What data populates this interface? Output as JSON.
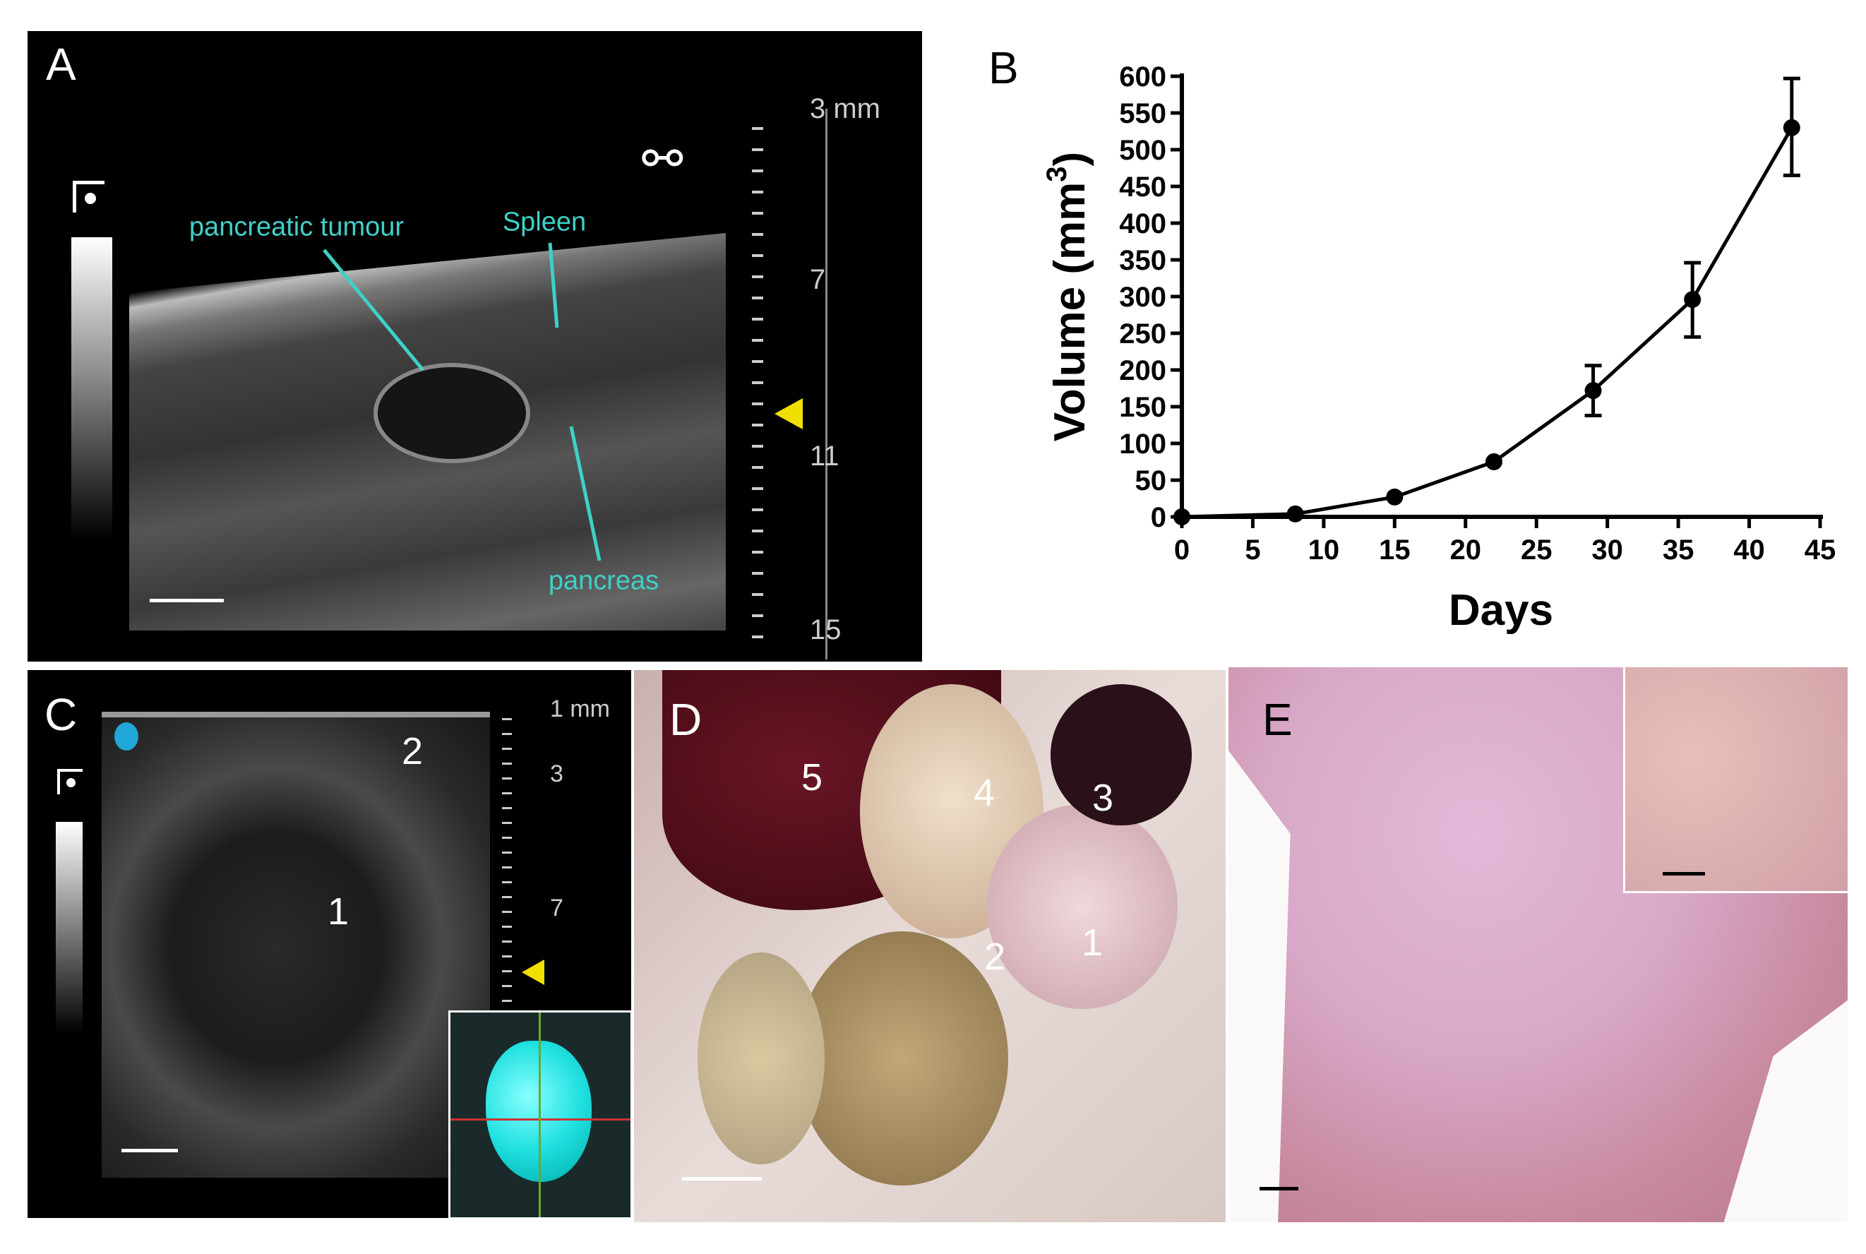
{
  "panels": {
    "a": {
      "letter": "A",
      "labels": {
        "tumour": "pancreatic tumour",
        "spleen": "Spleen",
        "pancreas": "pancreas"
      },
      "depth_scale": [
        "3 mm",
        "7",
        "11",
        "15"
      ]
    },
    "b": {
      "letter": "B"
    },
    "c": {
      "letter": "C",
      "depth_scale": [
        "1 mm",
        "3",
        "7"
      ],
      "numbers": [
        "1",
        "2"
      ]
    },
    "d": {
      "letter": "D",
      "numbers": [
        "1",
        "2",
        "3",
        "4",
        "5"
      ]
    },
    "e": {
      "letter": "E"
    }
  },
  "colors": {
    "annotation": "#3fd0c8",
    "marker": "#f0e000",
    "segmentation": "#20e0e0"
  },
  "chart_data": {
    "type": "line",
    "xlabel": "Days",
    "ylabel": "Volume (mm",
    "ylabel_sup": "3",
    "ylabel_end": ")",
    "xlim": [
      0,
      45
    ],
    "ylim": [
      0,
      600
    ],
    "xticks": [
      0,
      5,
      10,
      15,
      20,
      25,
      30,
      35,
      40,
      45
    ],
    "yticks": [
      0,
      50,
      100,
      150,
      200,
      250,
      300,
      350,
      400,
      450,
      500,
      550,
      600
    ],
    "grid": false,
    "x": [
      0,
      8,
      15,
      22,
      29,
      36,
      43
    ],
    "values": [
      0,
      4,
      27,
      75,
      172,
      296,
      530
    ],
    "error_low": [
      0,
      4,
      27,
      75,
      138,
      245,
      465
    ],
    "error_high": [
      0,
      4,
      27,
      75,
      206,
      346,
      597
    ]
  }
}
